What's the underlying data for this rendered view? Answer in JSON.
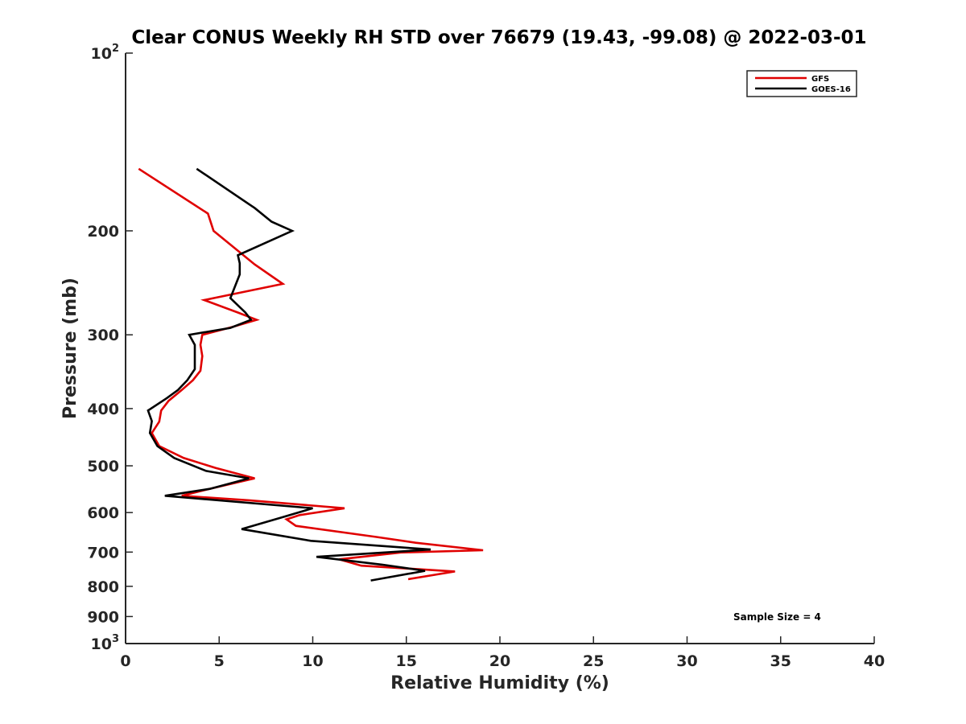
{
  "chart_data": {
    "type": "line",
    "title": "Clear CONUS Weekly RH STD over 76679 (19.43, -99.08) @ 2022-03-01",
    "xlabel": "Relative Humidity (%)",
    "ylabel": "Pressure (mb)",
    "xlim": [
      0,
      40
    ],
    "ylim": [
      100,
      1000
    ],
    "yscale": "log",
    "y_reversed": true,
    "grid": false,
    "x_ticks": [
      "0",
      "5",
      "10",
      "15",
      "20",
      "25",
      "30",
      "35",
      "40"
    ],
    "y_ticks": [
      {
        "value": 100,
        "base": "10",
        "exp": "2"
      },
      {
        "value": 200,
        "label": "200"
      },
      {
        "value": 300,
        "label": "300"
      },
      {
        "value": 400,
        "label": "400"
      },
      {
        "value": 500,
        "label": "500"
      },
      {
        "value": 600,
        "label": "600"
      },
      {
        "value": 700,
        "label": "700"
      },
      {
        "value": 800,
        "label": "800"
      },
      {
        "value": 900,
        "label": "900"
      },
      {
        "value": 1000,
        "base": "10",
        "exp": "3"
      }
    ],
    "legend_position": "top-right",
    "annotation": "Sample Size = 4",
    "series": [
      {
        "name": "GFS",
        "color": "#e00000",
        "points": [
          [
            0.7,
            157
          ],
          [
            4.4,
            187
          ],
          [
            4.7,
            200
          ],
          [
            6.9,
            228
          ],
          [
            8.4,
            246
          ],
          [
            4.2,
            262
          ],
          [
            6.0,
            275
          ],
          [
            7.0,
            283
          ],
          [
            5.7,
            291
          ],
          [
            4.1,
            300
          ],
          [
            4.0,
            312
          ],
          [
            4.1,
            326
          ],
          [
            4.0,
            345
          ],
          [
            3.6,
            358
          ],
          [
            3.0,
            372
          ],
          [
            2.3,
            388
          ],
          [
            1.9,
            403
          ],
          [
            1.8,
            421
          ],
          [
            1.4,
            440
          ],
          [
            1.8,
            463
          ],
          [
            3.1,
            485
          ],
          [
            4.8,
            504
          ],
          [
            6.9,
            525
          ],
          [
            4.6,
            546
          ],
          [
            3.0,
            562
          ],
          [
            6.6,
            572
          ],
          [
            11.7,
            590
          ],
          [
            9.3,
            606
          ],
          [
            8.6,
            616
          ],
          [
            9.1,
            632
          ],
          [
            13.4,
            660
          ],
          [
            15.5,
            675
          ],
          [
            19.1,
            695
          ],
          [
            14.7,
            701
          ],
          [
            11.4,
            720
          ],
          [
            12.6,
            738
          ],
          [
            17.6,
            755
          ],
          [
            15.1,
            778
          ]
        ]
      },
      {
        "name": "GOES-16",
        "color": "#000000",
        "points": [
          [
            3.8,
            157
          ],
          [
            6.9,
            183
          ],
          [
            7.8,
            193
          ],
          [
            8.9,
            200
          ],
          [
            6.0,
            220
          ],
          [
            6.1,
            227
          ],
          [
            6.1,
            237
          ],
          [
            5.6,
            260
          ],
          [
            6.4,
            275
          ],
          [
            6.7,
            283
          ],
          [
            5.6,
            292
          ],
          [
            3.4,
            300
          ],
          [
            3.7,
            312
          ],
          [
            3.7,
            326
          ],
          [
            3.7,
            343
          ],
          [
            3.3,
            358
          ],
          [
            2.8,
            372
          ],
          [
            2.2,
            384
          ],
          [
            1.2,
            403
          ],
          [
            1.4,
            420
          ],
          [
            1.3,
            440
          ],
          [
            1.7,
            463
          ],
          [
            2.6,
            485
          ],
          [
            4.3,
            510
          ],
          [
            6.6,
            525
          ],
          [
            4.5,
            547
          ],
          [
            2.1,
            562
          ],
          [
            10.0,
            590
          ],
          [
            8.3,
            612
          ],
          [
            6.2,
            640
          ],
          [
            9.9,
            670
          ],
          [
            16.3,
            693
          ],
          [
            10.2,
            713
          ],
          [
            13.7,
            735
          ],
          [
            16.0,
            753
          ],
          [
            13.1,
            782
          ]
        ]
      }
    ]
  }
}
